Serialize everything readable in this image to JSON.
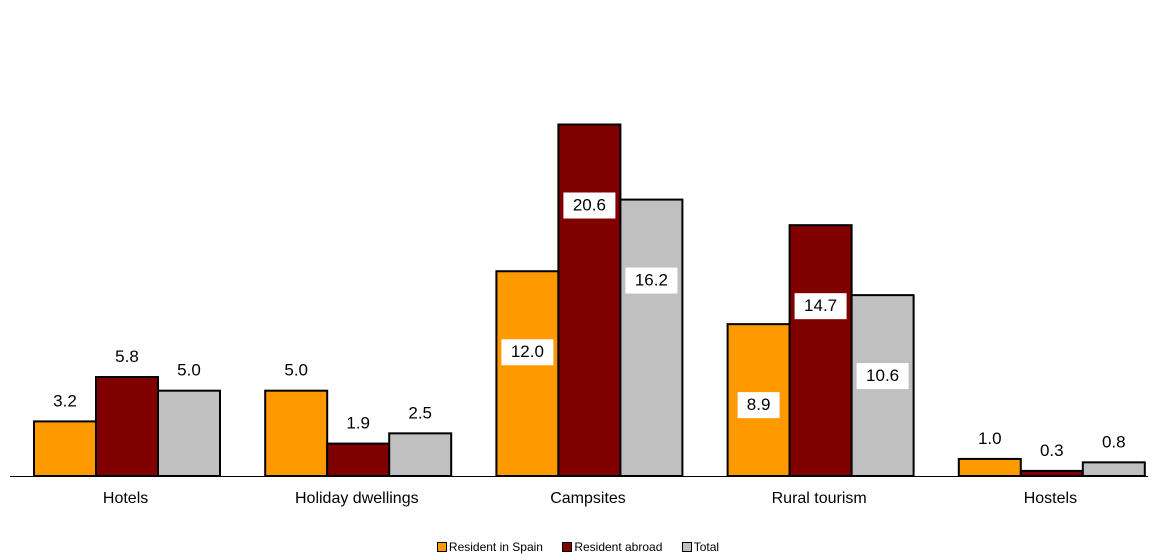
{
  "chart_data": {
    "type": "bar",
    "categories": [
      "Hotels",
      "Holiday dwellings",
      "Campsites",
      "Rural tourism",
      "Hostels"
    ],
    "series": [
      {
        "name": "Resident in Spain",
        "color": "#FF9900",
        "values": [
          3.2,
          5.0,
          12.0,
          8.9,
          1.0
        ]
      },
      {
        "name": "Resident abroad",
        "color": "#800000",
        "values": [
          5.8,
          1.9,
          20.6,
          14.7,
          0.3
        ]
      },
      {
        "name": "Total",
        "color": "#C0C0C0",
        "values": [
          5.0,
          2.5,
          16.2,
          10.6,
          0.8
        ]
      }
    ],
    "value_labels": [
      [
        "3.2",
        "5.0",
        "12.0",
        "8.9",
        "1.0"
      ],
      [
        "5.8",
        "1.9",
        "20.6",
        "14.7",
        "0.3"
      ],
      [
        "5.0",
        "2.5",
        "16.2",
        "10.6",
        "0.8"
      ]
    ],
    "ylim": [
      0,
      26.9
    ],
    "grid": false,
    "legend_position": "bottom"
  }
}
